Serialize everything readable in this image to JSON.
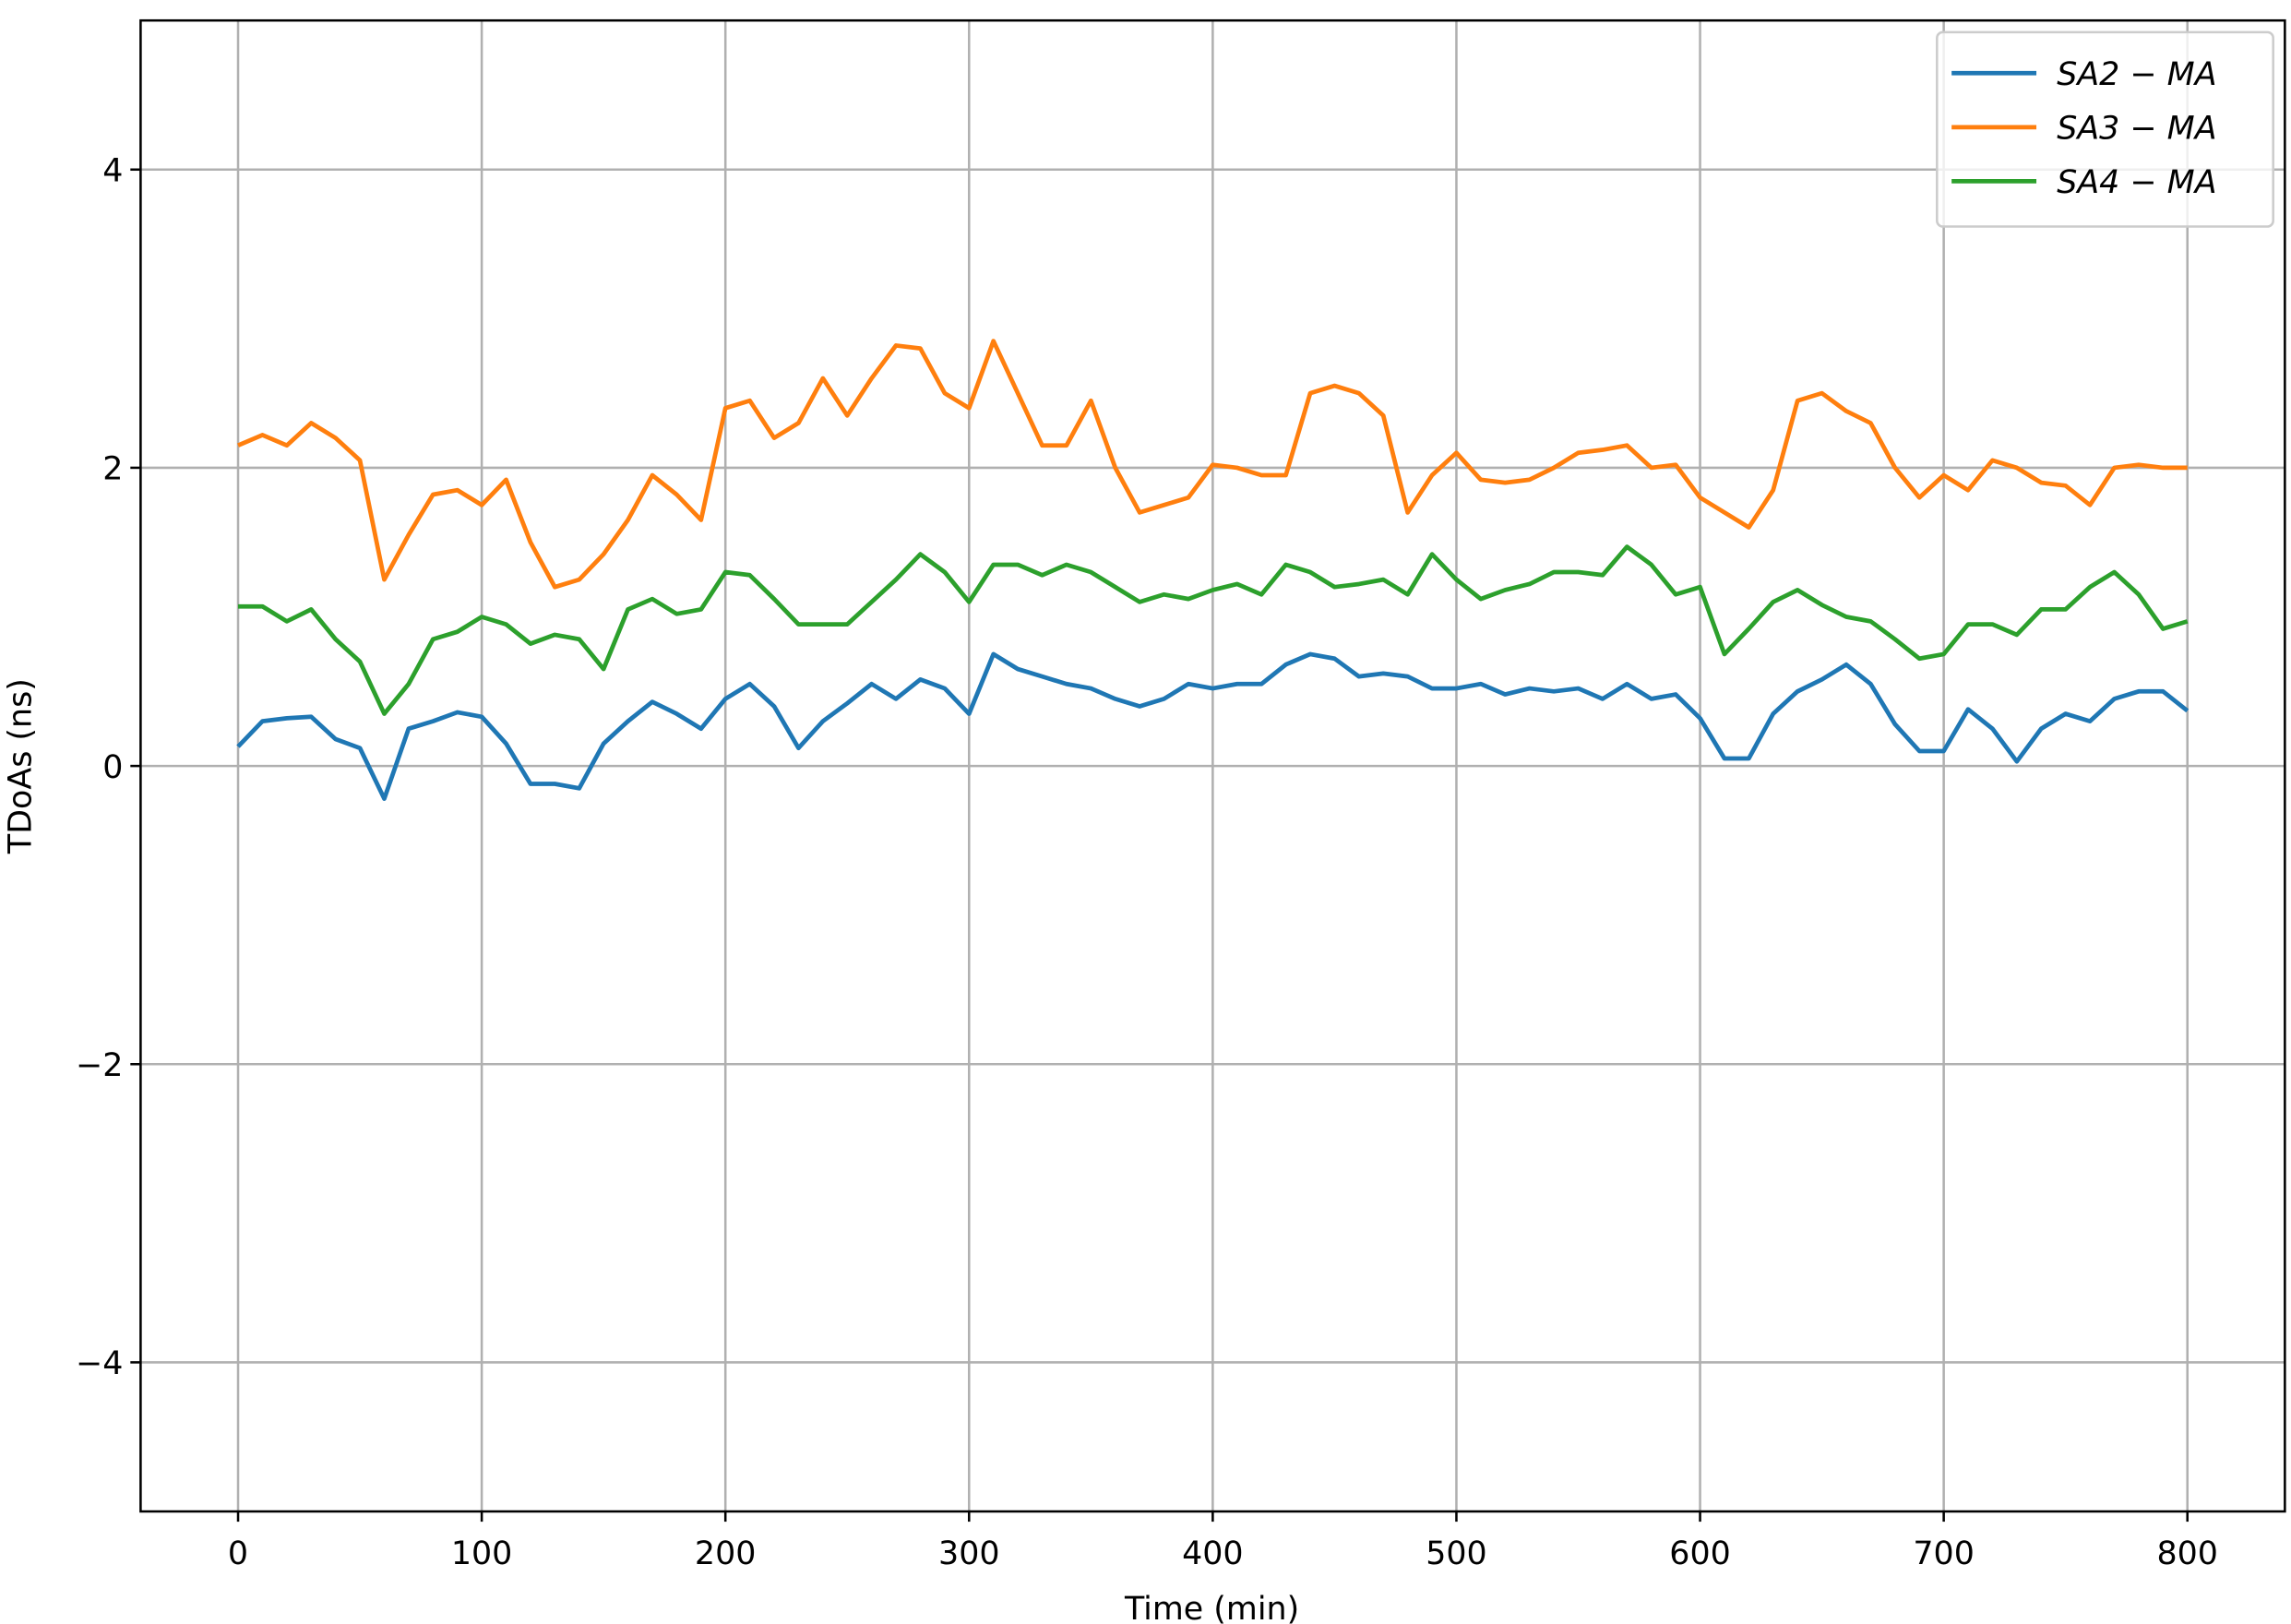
{
  "chart_data": {
    "type": "line",
    "xlabel": "Time (min)",
    "ylabel": "TDoAs (ns)",
    "xlim": [
      -40,
      840
    ],
    "ylim": [
      -5,
      5
    ],
    "xticks": [
      0,
      100,
      200,
      300,
      400,
      500,
      600,
      700,
      800
    ],
    "yticks": [
      {
        "value": -4,
        "label": "−4"
      },
      {
        "value": -2,
        "label": "−2"
      },
      0,
      2,
      4
    ],
    "grid": true,
    "legend": "upper right",
    "x": [
      0,
      10,
      20,
      30,
      40,
      50,
      60,
      70,
      80,
      90,
      100,
      110,
      120,
      130,
      140,
      150,
      160,
      170,
      180,
      190,
      200,
      210,
      220,
      230,
      240,
      250,
      260,
      270,
      280,
      290,
      300,
      310,
      320,
      330,
      340,
      350,
      360,
      370,
      380,
      390,
      400,
      410,
      420,
      430,
      440,
      450,
      460,
      470,
      480,
      490,
      500,
      510,
      520,
      530,
      540,
      550,
      560,
      570,
      580,
      590,
      600,
      610,
      620,
      630,
      640,
      650,
      660,
      670,
      680,
      690,
      700,
      710,
      720,
      730,
      740,
      750,
      760,
      770,
      780,
      790,
      800
    ],
    "series": [
      {
        "name": "SA2 − MA",
        "color": "#1f77b4",
        "values": [
          0.13,
          0.3,
          0.32,
          0.33,
          0.18,
          0.12,
          -0.22,
          0.25,
          0.3,
          0.36,
          0.33,
          0.15,
          -0.12,
          -0.12,
          -0.15,
          0.15,
          0.3,
          0.43,
          0.35,
          0.25,
          0.45,
          0.55,
          0.4,
          0.12,
          0.3,
          0.42,
          0.55,
          0.45,
          0.58,
          0.52,
          0.35,
          0.75,
          0.65,
          0.6,
          0.55,
          0.52,
          0.45,
          0.4,
          0.45,
          0.55,
          0.52,
          0.55,
          0.55,
          0.68,
          0.75,
          0.72,
          0.6,
          0.62,
          0.6,
          0.52,
          0.52,
          0.55,
          0.48,
          0.52,
          0.5,
          0.52,
          0.45,
          0.55,
          0.45,
          0.48,
          0.32,
          0.05,
          0.05,
          0.35,
          0.5,
          0.58,
          0.68,
          0.55,
          0.28,
          0.1,
          0.1,
          0.38,
          0.25,
          0.03,
          0.25,
          0.35,
          0.3,
          0.45,
          0.5,
          0.5,
          0.37
        ]
      },
      {
        "name": "SA3 − MA",
        "color": "#ff7f0e",
        "values": [
          2.15,
          2.22,
          2.15,
          2.3,
          2.2,
          2.05,
          1.25,
          1.55,
          1.82,
          1.85,
          1.75,
          1.92,
          1.5,
          1.2,
          1.25,
          1.42,
          1.65,
          1.95,
          1.82,
          1.65,
          2.4,
          2.45,
          2.2,
          2.3,
          2.6,
          2.35,
          2.6,
          2.82,
          2.8,
          2.5,
          2.4,
          2.85,
          2.5,
          2.15,
          2.15,
          2.45,
          2.0,
          1.7,
          1.75,
          1.8,
          2.02,
          2.0,
          1.95,
          1.95,
          2.5,
          2.55,
          2.5,
          2.35,
          1.7,
          1.95,
          2.1,
          1.92,
          1.9,
          1.92,
          2.0,
          2.1,
          2.12,
          2.15,
          2.0,
          2.02,
          1.8,
          1.7,
          1.6,
          1.85,
          2.45,
          2.5,
          2.38,
          2.3,
          2.0,
          1.8,
          1.95,
          1.85,
          2.05,
          2.0,
          1.9,
          1.88,
          1.75,
          2.0,
          2.02,
          2.0,
          2.0
        ]
      },
      {
        "name": "SA4 − MA",
        "color": "#2ca02c",
        "values": [
          1.07,
          1.07,
          0.97,
          1.05,
          0.85,
          0.7,
          0.35,
          0.55,
          0.85,
          0.9,
          1.0,
          0.95,
          0.82,
          0.88,
          0.85,
          0.65,
          1.05,
          1.12,
          1.02,
          1.05,
          1.3,
          1.28,
          1.12,
          0.95,
          0.95,
          0.95,
          1.1,
          1.25,
          1.42,
          1.3,
          1.1,
          1.35,
          1.35,
          1.28,
          1.35,
          1.3,
          1.2,
          1.1,
          1.15,
          1.12,
          1.18,
          1.22,
          1.15,
          1.35,
          1.3,
          1.2,
          1.22,
          1.25,
          1.15,
          1.42,
          1.25,
          1.12,
          1.18,
          1.22,
          1.3,
          1.3,
          1.28,
          1.47,
          1.35,
          1.15,
          1.2,
          0.75,
          0.92,
          1.1,
          1.18,
          1.08,
          1.0,
          0.97,
          0.85,
          0.72,
          0.75,
          0.95,
          0.95,
          0.88,
          1.05,
          1.05,
          1.2,
          1.3,
          1.15,
          0.92,
          0.97
        ]
      }
    ]
  }
}
